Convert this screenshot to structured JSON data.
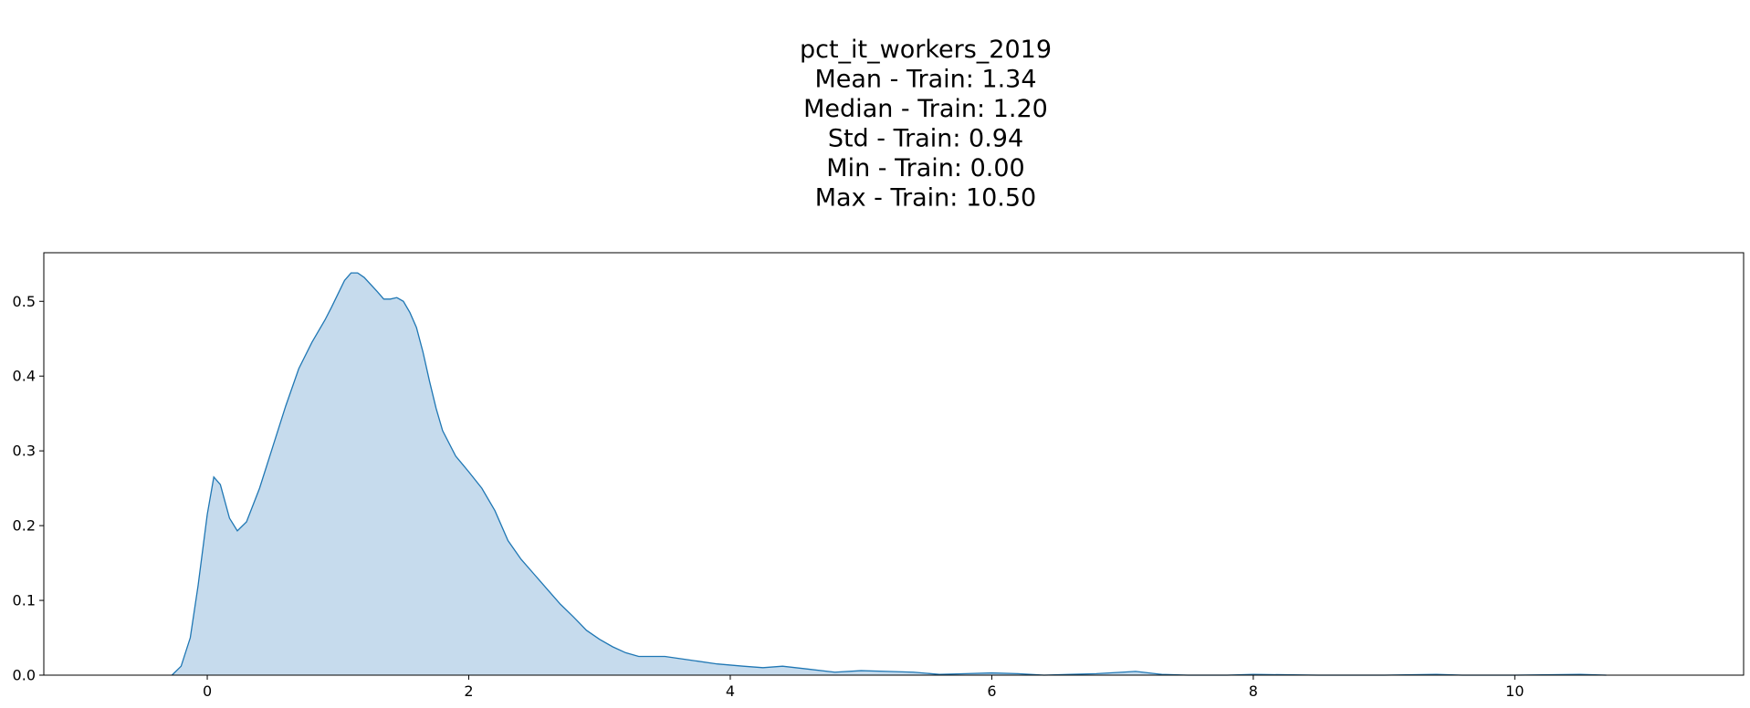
{
  "chart_data": {
    "type": "area",
    "title_lines": [
      "pct_it_workers_2019",
      "Mean - Train: 1.34",
      "Median - Train: 1.20",
      "Std - Train: 0.94",
      "Min - Train: 0.00",
      "Max - Train: 10.50"
    ],
    "xlabel": "",
    "ylabel": "",
    "xlim": [
      -1.25,
      11.75
    ],
    "ylim": [
      0,
      0.565
    ],
    "x_ticks": [
      0,
      2,
      4,
      6,
      8,
      10
    ],
    "y_ticks": [
      0.0,
      0.1,
      0.2,
      0.3,
      0.4,
      0.5
    ],
    "y_tick_labels": [
      "0.0",
      "0.1",
      "0.2",
      "0.3",
      "0.4",
      "0.5"
    ],
    "grid": false,
    "series": [
      {
        "line_color": "#1f77b4",
        "fill_color": "#c6dbed",
        "x": [
          -0.27,
          -0.2,
          -0.13,
          -0.07,
          0.0,
          0.05,
          0.1,
          0.17,
          0.23,
          0.3,
          0.4,
          0.5,
          0.6,
          0.7,
          0.8,
          0.9,
          0.95,
          1.0,
          1.05,
          1.1,
          1.15,
          1.2,
          1.3,
          1.35,
          1.4,
          1.45,
          1.5,
          1.55,
          1.6,
          1.65,
          1.7,
          1.75,
          1.8,
          1.9,
          2.0,
          2.1,
          2.2,
          2.3,
          2.4,
          2.5,
          2.6,
          2.7,
          2.8,
          2.9,
          3.0,
          3.1,
          3.2,
          3.3,
          3.5,
          3.7,
          3.9,
          4.1,
          4.25,
          4.4,
          4.6,
          4.8,
          5.0,
          5.2,
          5.4,
          5.6,
          5.8,
          6.0,
          6.2,
          6.4,
          6.6,
          6.8,
          7.0,
          7.1,
          7.3,
          7.5,
          7.8,
          8.0,
          8.5,
          9.0,
          9.4,
          9.6,
          10.0,
          10.5,
          10.7
        ],
        "y": [
          0.0,
          0.012,
          0.05,
          0.12,
          0.215,
          0.265,
          0.255,
          0.21,
          0.193,
          0.205,
          0.25,
          0.305,
          0.36,
          0.41,
          0.445,
          0.475,
          0.492,
          0.51,
          0.528,
          0.538,
          0.538,
          0.532,
          0.513,
          0.503,
          0.503,
          0.505,
          0.5,
          0.485,
          0.465,
          0.432,
          0.393,
          0.357,
          0.327,
          0.293,
          0.272,
          0.25,
          0.22,
          0.18,
          0.155,
          0.135,
          0.115,
          0.095,
          0.078,
          0.06,
          0.048,
          0.038,
          0.03,
          0.025,
          0.025,
          0.02,
          0.015,
          0.012,
          0.01,
          0.012,
          0.008,
          0.004,
          0.006,
          0.005,
          0.004,
          0.001,
          0.002,
          0.003,
          0.002,
          0.0,
          0.001,
          0.002,
          0.004,
          0.005,
          0.001,
          0.0,
          0.0,
          0.001,
          0.0,
          0.0,
          0.001,
          0.0,
          0.0,
          0.001,
          0.0
        ]
      }
    ]
  }
}
